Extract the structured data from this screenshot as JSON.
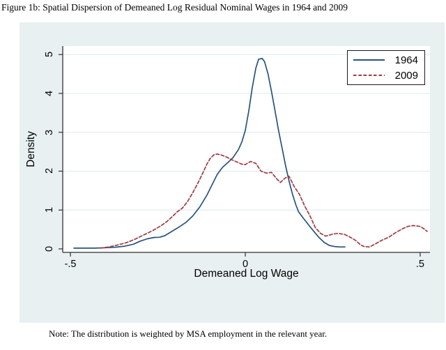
{
  "page": {
    "title": "Figure 1b: Spatial Dispersion of Demeaned Log Residual Nominal Wages in 1964 and 2009",
    "note": "Note: The distribution is weighted by MSA employment in the relevant year."
  },
  "chart_data": {
    "type": "line",
    "title": "",
    "xlabel": "Demeaned Log Wage",
    "ylabel": "Density",
    "xlim": [
      -0.522,
      0.528
    ],
    "ylim": [
      -0.09,
      5.22
    ],
    "grid": "horizontal-light",
    "x_ticks": {
      "values": [
        -0.5,
        0,
        0.5
      ],
      "labels": [
        "-.5",
        "0",
        ".5"
      ]
    },
    "y_ticks": {
      "values": [
        0,
        1,
        2,
        3,
        4,
        5
      ],
      "labels": [
        "0",
        "1",
        "2",
        "3",
        "4",
        "5"
      ]
    },
    "legend": {
      "position": "top-right",
      "border": true
    },
    "colors": {
      "region_bg": "#e8f0f2",
      "plot_bg": "#ffffff",
      "grid": "#e2edf0",
      "axis": "#2f2f2f",
      "series_1964": "#27537d",
      "series_2009": "#9e3a40"
    },
    "series": [
      {
        "name": "1964",
        "style": "solid",
        "color": "#27537d",
        "points": [
          [
            -0.49,
            0.02
          ],
          [
            -0.46,
            0.02
          ],
          [
            -0.43,
            0.02
          ],
          [
            -0.4,
            0.03
          ],
          [
            -0.37,
            0.045
          ],
          [
            -0.345,
            0.07
          ],
          [
            -0.32,
            0.12
          ],
          [
            -0.3,
            0.2
          ],
          [
            -0.28,
            0.26
          ],
          [
            -0.26,
            0.295
          ],
          [
            -0.245,
            0.3
          ],
          [
            -0.23,
            0.34
          ],
          [
            -0.21,
            0.45
          ],
          [
            -0.19,
            0.56
          ],
          [
            -0.17,
            0.68
          ],
          [
            -0.15,
            0.85
          ],
          [
            -0.13,
            1.08
          ],
          [
            -0.11,
            1.38
          ],
          [
            -0.095,
            1.65
          ],
          [
            -0.08,
            1.92
          ],
          [
            -0.065,
            2.1
          ],
          [
            -0.05,
            2.22
          ],
          [
            -0.035,
            2.35
          ],
          [
            -0.02,
            2.55
          ],
          [
            -0.01,
            2.75
          ],
          [
            0.0,
            3.05
          ],
          [
            0.01,
            3.55
          ],
          [
            0.02,
            4.15
          ],
          [
            0.03,
            4.65
          ],
          [
            0.038,
            4.88
          ],
          [
            0.048,
            4.9
          ],
          [
            0.055,
            4.82
          ],
          [
            0.065,
            4.5
          ],
          [
            0.075,
            4.05
          ],
          [
            0.085,
            3.55
          ],
          [
            0.095,
            3.05
          ],
          [
            0.105,
            2.6
          ],
          [
            0.115,
            2.15
          ],
          [
            0.125,
            1.75
          ],
          [
            0.135,
            1.4
          ],
          [
            0.145,
            1.12
          ],
          [
            0.152,
            0.96
          ],
          [
            0.165,
            0.8
          ],
          [
            0.18,
            0.63
          ],
          [
            0.195,
            0.46
          ],
          [
            0.21,
            0.3
          ],
          [
            0.225,
            0.17
          ],
          [
            0.24,
            0.09
          ],
          [
            0.255,
            0.06
          ],
          [
            0.27,
            0.05
          ],
          [
            0.285,
            0.05
          ]
        ]
      },
      {
        "name": "2009",
        "style": "dashed",
        "color": "#9e3a40",
        "points": [
          [
            -0.415,
            0.02
          ],
          [
            -0.39,
            0.05
          ],
          [
            -0.365,
            0.1
          ],
          [
            -0.34,
            0.16
          ],
          [
            -0.315,
            0.25
          ],
          [
            -0.29,
            0.36
          ],
          [
            -0.265,
            0.47
          ],
          [
            -0.24,
            0.6
          ],
          [
            -0.225,
            0.7
          ],
          [
            -0.21,
            0.82
          ],
          [
            -0.195,
            0.95
          ],
          [
            -0.18,
            1.05
          ],
          [
            -0.165,
            1.22
          ],
          [
            -0.15,
            1.45
          ],
          [
            -0.135,
            1.7
          ],
          [
            -0.12,
            1.98
          ],
          [
            -0.11,
            2.18
          ],
          [
            -0.1,
            2.33
          ],
          [
            -0.09,
            2.42
          ],
          [
            -0.08,
            2.44
          ],
          [
            -0.07,
            2.42
          ],
          [
            -0.055,
            2.37
          ],
          [
            -0.04,
            2.3
          ],
          [
            -0.025,
            2.24
          ],
          [
            -0.01,
            2.18
          ],
          [
            0.0,
            2.17
          ],
          [
            0.015,
            2.25
          ],
          [
            0.03,
            2.2
          ],
          [
            0.045,
            2.0
          ],
          [
            0.06,
            1.95
          ],
          [
            0.075,
            1.97
          ],
          [
            0.09,
            1.8
          ],
          [
            0.1,
            1.71
          ],
          [
            0.115,
            1.83
          ],
          [
            0.125,
            1.87
          ],
          [
            0.14,
            1.6
          ],
          [
            0.155,
            1.4
          ],
          [
            0.17,
            1.1
          ],
          [
            0.185,
            0.85
          ],
          [
            0.2,
            0.55
          ],
          [
            0.215,
            0.4
          ],
          [
            0.23,
            0.33
          ],
          [
            0.25,
            0.38
          ],
          [
            0.265,
            0.4
          ],
          [
            0.285,
            0.37
          ],
          [
            0.3,
            0.3
          ],
          [
            0.315,
            0.22
          ],
          [
            0.33,
            0.1
          ],
          [
            0.34,
            0.06
          ],
          [
            0.355,
            0.05
          ],
          [
            0.37,
            0.12
          ],
          [
            0.39,
            0.22
          ],
          [
            0.41,
            0.3
          ],
          [
            0.43,
            0.42
          ],
          [
            0.45,
            0.52
          ],
          [
            0.465,
            0.58
          ],
          [
            0.48,
            0.6
          ],
          [
            0.5,
            0.58
          ],
          [
            0.51,
            0.52
          ],
          [
            0.52,
            0.45
          ]
        ]
      }
    ]
  }
}
